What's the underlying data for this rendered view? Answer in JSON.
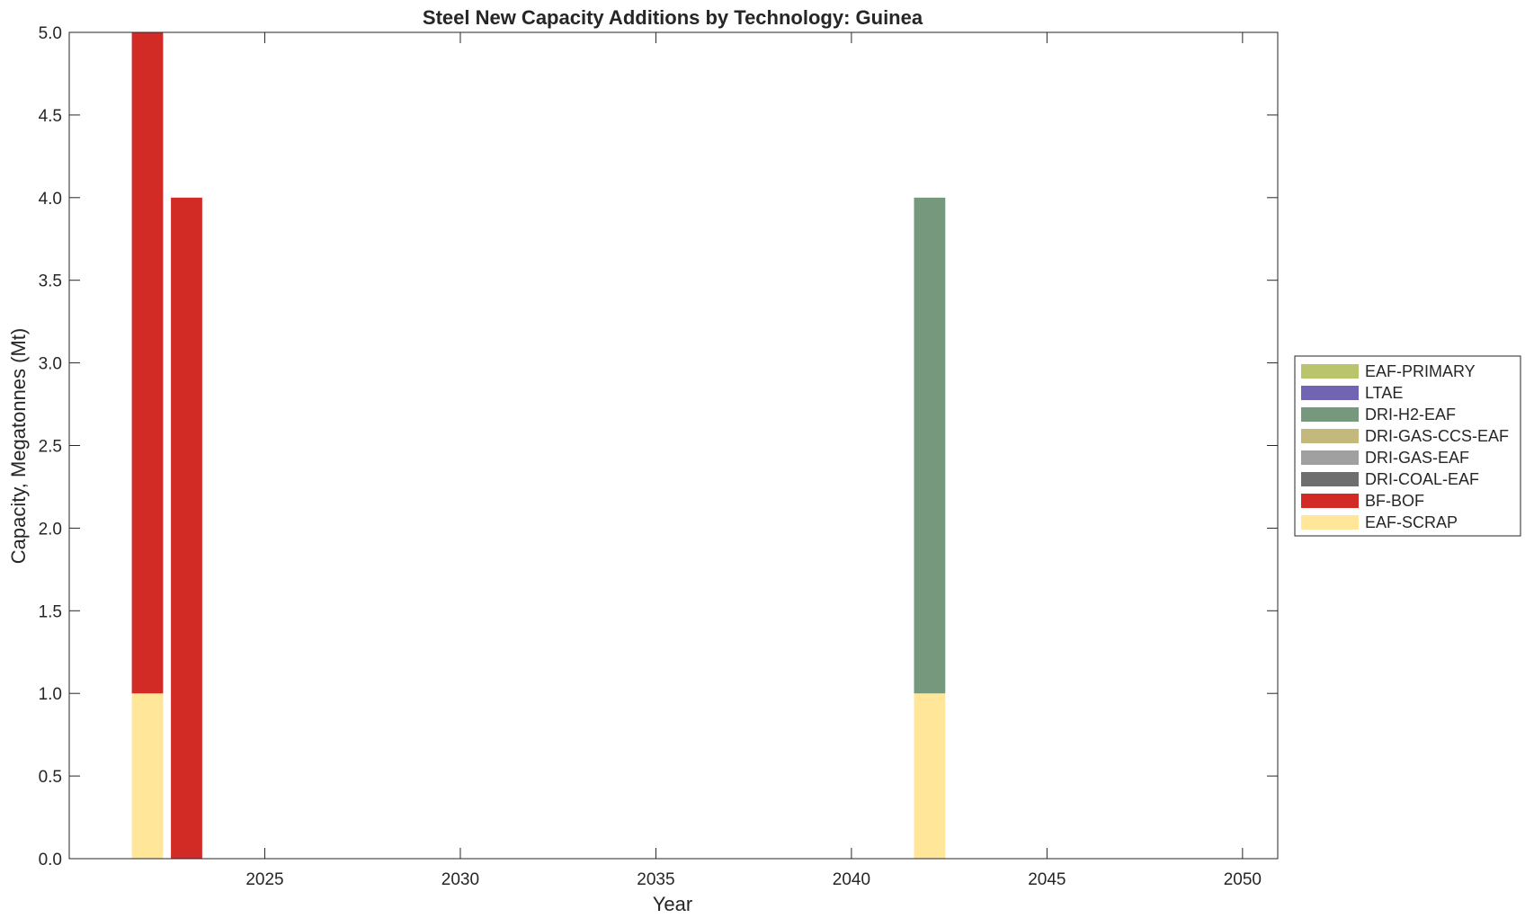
{
  "chart_data": {
    "type": "bar",
    "stacked": true,
    "title": "Steel New Capacity Additions by Technology: Guinea",
    "xlabel": "Year",
    "ylabel": "Capacity, Megatonnes (Mt)",
    "xlim": [
      2020,
      2050.9
    ],
    "ylim": [
      0,
      5
    ],
    "xticks": [
      2025,
      2030,
      2035,
      2040,
      2045,
      2050
    ],
    "yticks": [
      0.0,
      0.5,
      1.0,
      1.5,
      2.0,
      2.5,
      3.0,
      3.5,
      4.0,
      4.5,
      5.0
    ],
    "ytick_labels": [
      "0.0",
      "0.5",
      "1.0",
      "1.5",
      "2.0",
      "2.5",
      "3.0",
      "3.5",
      "4.0",
      "4.5",
      "5.0"
    ],
    "xtick_labels": [
      "2025",
      "2030",
      "2035",
      "2040",
      "2045",
      "2050"
    ],
    "categories": [
      2022,
      2023,
      2042
    ],
    "bar_width": 0.8,
    "legend_position": "outside-right",
    "series": [
      {
        "name": "EAF-SCRAP",
        "color": "#FFE699",
        "values": [
          1,
          0,
          1
        ]
      },
      {
        "name": "BF-BOF",
        "color": "#D22A25",
        "values": [
          4,
          4,
          0
        ]
      },
      {
        "name": "DRI-COAL-EAF",
        "color": "#6E6E6E",
        "values": [
          0,
          0,
          0
        ]
      },
      {
        "name": "DRI-GAS-EAF",
        "color": "#A0A0A0",
        "values": [
          0,
          0,
          0
        ]
      },
      {
        "name": "DRI-GAS-CCS-EAF",
        "color": "#C3B97D",
        "values": [
          0,
          0,
          0
        ]
      },
      {
        "name": "DRI-H2-EAF",
        "color": "#76997D",
        "values": [
          0,
          0,
          3
        ]
      },
      {
        "name": "LTAE",
        "color": "#7165B3",
        "values": [
          0,
          0,
          0
        ]
      },
      {
        "name": "EAF-PRIMARY",
        "color": "#B9C46C",
        "values": [
          0,
          0,
          0
        ]
      }
    ],
    "legend_order": [
      "EAF-PRIMARY",
      "LTAE",
      "DRI-H2-EAF",
      "DRI-GAS-CCS-EAF",
      "DRI-GAS-EAF",
      "DRI-COAL-EAF",
      "BF-BOF",
      "EAF-SCRAP"
    ]
  }
}
